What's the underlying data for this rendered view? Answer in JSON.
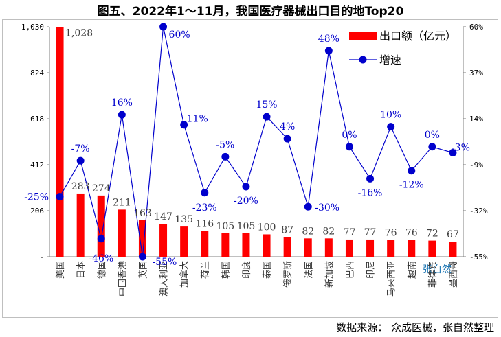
{
  "chart_data": {
    "type": "bar",
    "title": "图五、2022年1～11月，我国医疗器械出口目的地Top20",
    "categories": [
      "美国",
      "日本",
      "德国",
      "中国香港",
      "英国",
      "澳大利亚",
      "加拿大",
      "荷兰",
      "韩国",
      "印度",
      "泰国",
      "俄罗斯",
      "法国",
      "新加坡",
      "巴西",
      "印尼",
      "马来西亚",
      "越南",
      "菲律宾",
      "墨西哥"
    ],
    "series": [
      {
        "name": "出口额（亿元）",
        "type": "bar",
        "axis": "left",
        "color": "#ff0000",
        "values": [
          1028,
          283,
          274,
          211,
          163,
          147,
          135,
          116,
          105,
          105,
          100,
          87,
          82,
          82,
          77,
          77,
          76,
          76,
          72,
          67
        ],
        "labels": [
          "1,028",
          "283",
          "274",
          "211",
          "163",
          "147",
          "135",
          "116",
          "105",
          "105",
          "100",
          "87",
          "82",
          "82",
          "77",
          "77",
          "76",
          "76",
          "72",
          "67"
        ]
      },
      {
        "name": "增速",
        "type": "line",
        "axis": "right",
        "color": "#0000cc",
        "values": [
          -25,
          -7,
          -46,
          16,
          -55,
          60,
          11,
          -23,
          -5,
          -20,
          15,
          4,
          -30,
          48,
          0,
          -16,
          10,
          -12,
          0,
          -3
        ],
        "labels": [
          "-25%",
          "-7%",
          "-46%",
          "16%",
          "-55%",
          "60%",
          "11%",
          "-23%",
          "-5%",
          "-20%",
          "15%",
          "4%",
          "-30%",
          "48%",
          "0%",
          "-16%",
          "10%",
          "-12%",
          "0%",
          "-3%"
        ]
      }
    ],
    "y_left": {
      "ylim": [
        0,
        1030
      ],
      "ticks": [
        0,
        206,
        412,
        618,
        824,
        1030
      ],
      "tick_labels": [
        "-",
        "206",
        "412",
        "618",
        "824",
        "1,030"
      ]
    },
    "y_right": {
      "ylim": [
        -55,
        60
      ],
      "ticks": [
        -55,
        -32,
        -9,
        14,
        37,
        60
      ],
      "tick_labels": [
        "-55%",
        "-32%",
        "-9%",
        "14%",
        "37%",
        "60%"
      ]
    },
    "legend_position": "top-right",
    "watermark": "张自然",
    "source": "数据来源：  众成医械，张自然整理"
  }
}
